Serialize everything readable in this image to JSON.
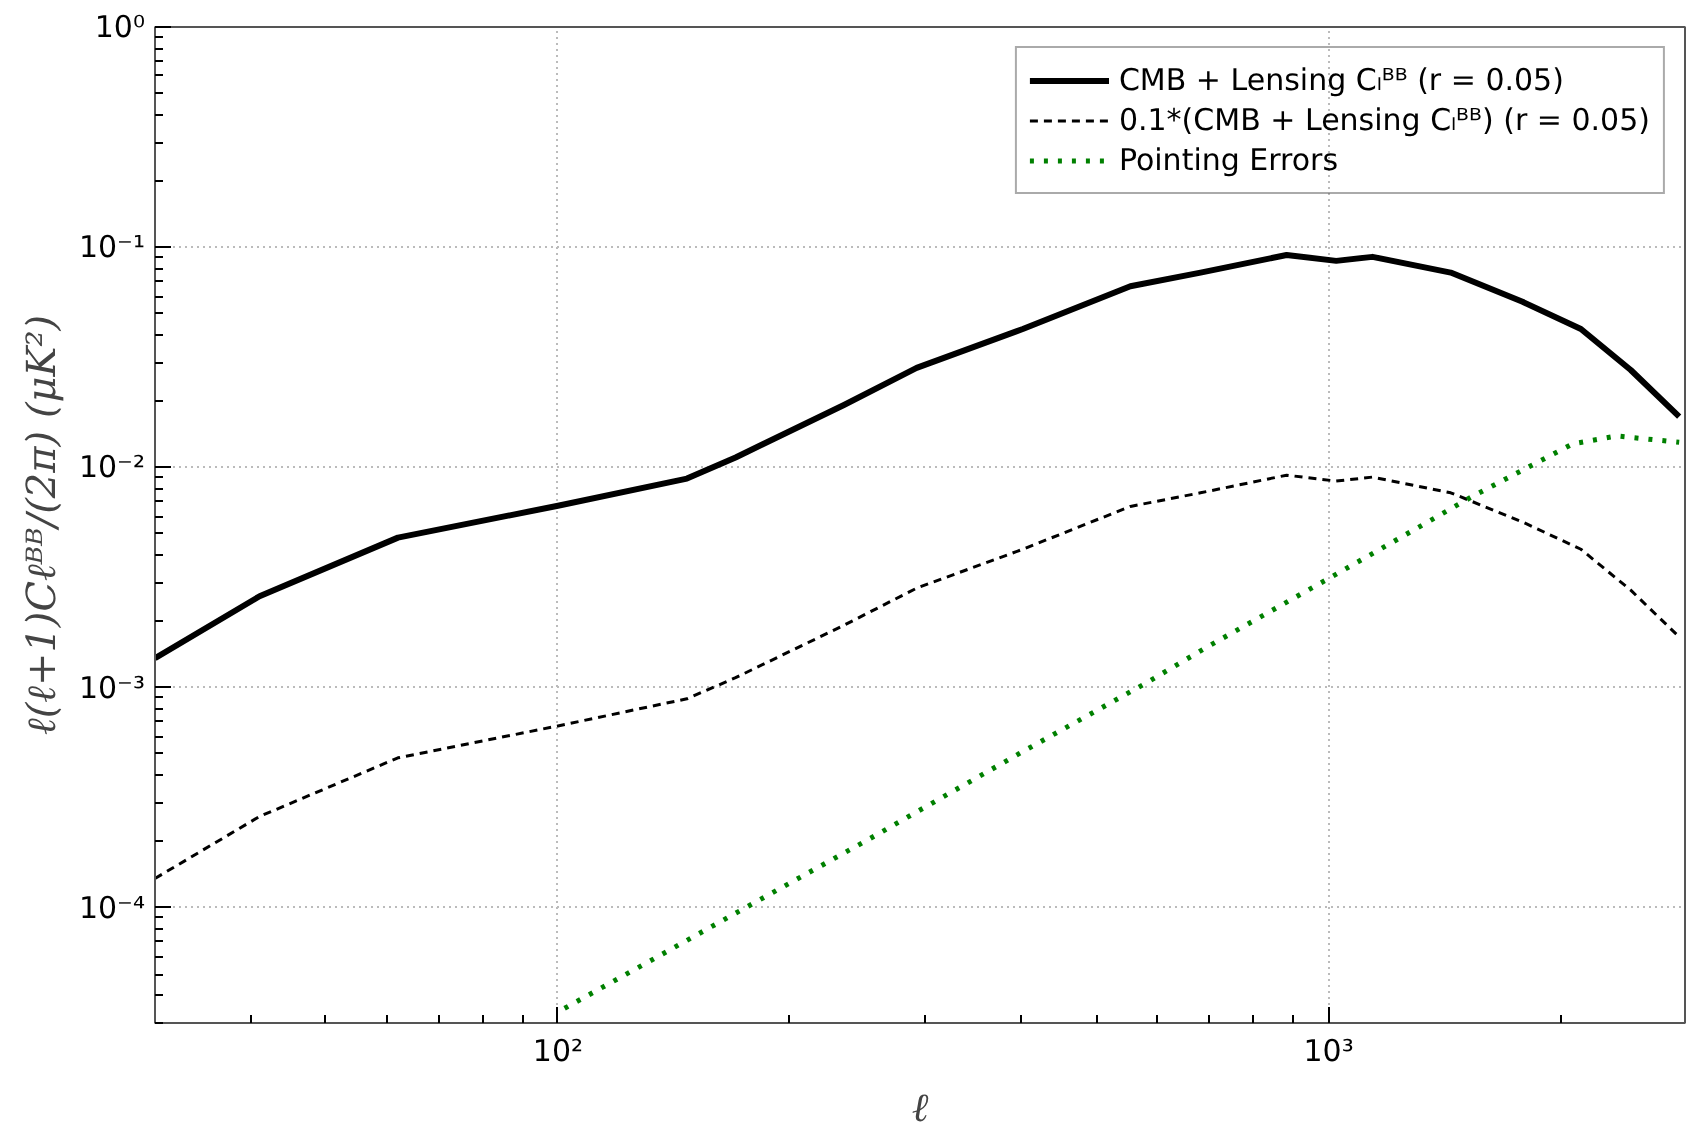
{
  "chart_data": {
    "type": "line",
    "xlabel": "ℓ",
    "ylabel": "ℓ(ℓ+1)Cℓᴮᴮ/(2π) (μK²)",
    "log": "xy",
    "grid": true,
    "legend": "top right",
    "xlim": [
      30,
      2900
    ],
    "ylim": [
      3e-05,
      1
    ],
    "xticks": [
      {
        "value": 100,
        "label": "10²"
      },
      {
        "value": 1000,
        "label": "10³"
      }
    ],
    "yticks": [
      {
        "value": 0.0001,
        "label": "10⁻⁴"
      },
      {
        "value": 0.001,
        "label": "10⁻³"
      },
      {
        "value": 0.01,
        "label": "10⁻²"
      },
      {
        "value": 0.1,
        "label": "10⁻¹"
      },
      {
        "value": 1,
        "label": "10⁰"
      }
    ],
    "series": [
      {
        "name": "CMB + Lensing Cₗᴮᴮ (r = 0.05)",
        "color": "#000000",
        "line_style": "solid",
        "x": [
          30,
          41,
          62,
          100,
          147,
          170,
          235,
          292,
          401,
          553,
          682,
          882,
          1023,
          1140,
          1440,
          1785,
          2125,
          2466,
          2850
        ],
        "values": [
          0.00136,
          0.0026,
          0.0048,
          0.0067,
          0.0089,
          0.0111,
          0.0192,
          0.0283,
          0.0425,
          0.0665,
          0.0767,
          0.0922,
          0.0867,
          0.0904,
          0.0767,
          0.0565,
          0.0425,
          0.0277,
          0.017
        ]
      },
      {
        "name": "0.1*(CMB + Lensing Cₗᴮᴮ) (r = 0.05)",
        "color": "#000000",
        "line_style": "dashed",
        "x": [
          30,
          41,
          62,
          100,
          147,
          170,
          235,
          292,
          401,
          553,
          682,
          882,
          1023,
          1140,
          1440,
          1785,
          2125,
          2466,
          2850
        ],
        "values": [
          0.000136,
          0.00026,
          0.00048,
          0.00067,
          0.00089,
          0.00111,
          0.00192,
          0.00283,
          0.00425,
          0.00665,
          0.00767,
          0.00922,
          0.00867,
          0.00904,
          0.00767,
          0.00565,
          0.00425,
          0.00277,
          0.0017
        ]
      },
      {
        "name": "Pointing Errors",
        "color": "#008000",
        "line_style": "dotted",
        "x": [
          102,
          130,
          182,
          250,
          400,
          577,
          700,
          1000,
          1200,
          1538,
          2074,
          2366,
          2850
        ],
        "values": [
          3.5e-05,
          5.6e-05,
          0.000108,
          0.0002,
          0.00051,
          0.00104,
          0.00155,
          0.00313,
          0.0045,
          0.0074,
          0.0128,
          0.0139,
          0.013
        ]
      }
    ]
  }
}
